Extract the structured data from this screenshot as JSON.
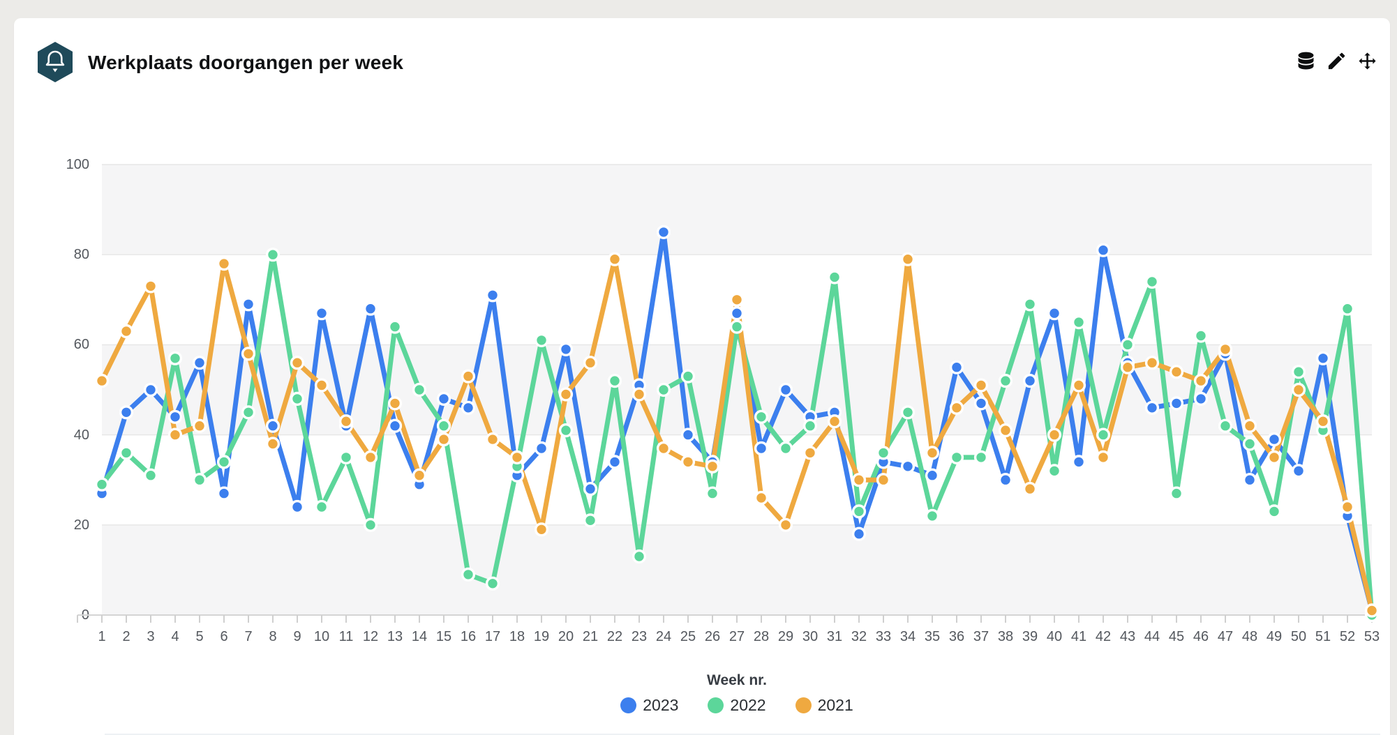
{
  "page": {
    "background": "#ECEBE8",
    "card_background": "#ffffff"
  },
  "header": {
    "title": "Werkplaats doorgangen per week",
    "badge": {
      "shape": "hexagon",
      "color": "#1F4A5A",
      "icon": "bell-icon"
    },
    "actions": [
      {
        "name": "data",
        "icon": "database-icon"
      },
      {
        "name": "edit",
        "icon": "pencil-icon"
      },
      {
        "name": "move",
        "icon": "move-icon"
      }
    ]
  },
  "chart_data": {
    "type": "line",
    "title": "Werkplaats doorgangen per week",
    "xlabel": "Week nr.",
    "ylabel": "",
    "ylim": [
      0,
      100
    ],
    "y_ticks": [
      0,
      20,
      40,
      60,
      80,
      100
    ],
    "grid": true,
    "legend_position": "bottom",
    "band_colors": [
      "#f5f5f6",
      "#ffffff"
    ],
    "gridline_color": "#e6e6e6",
    "axis_line_color": "#d4d4d4",
    "tick_color": "#cfcfcf",
    "categories": [
      1,
      2,
      3,
      4,
      5,
      6,
      7,
      8,
      9,
      10,
      11,
      12,
      13,
      14,
      15,
      16,
      17,
      18,
      19,
      20,
      21,
      22,
      23,
      24,
      25,
      26,
      27,
      28,
      29,
      30,
      31,
      32,
      33,
      34,
      35,
      36,
      37,
      38,
      39,
      40,
      41,
      42,
      43,
      44,
      45,
      46,
      47,
      48,
      49,
      50,
      51,
      52,
      53
    ],
    "series": [
      {
        "name": "2023",
        "color": "#3C7FEE",
        "values": [
          27,
          45,
          50,
          44,
          56,
          27,
          69,
          42,
          24,
          67,
          42,
          68,
          42,
          29,
          48,
          46,
          71,
          31,
          37,
          59,
          28,
          34,
          51,
          85,
          40,
          34,
          67,
          37,
          50,
          44,
          45,
          18,
          34,
          33,
          31,
          55,
          47,
          30,
          52,
          67,
          34,
          81,
          56,
          46,
          47,
          48,
          58,
          30,
          39,
          32,
          57,
          22,
          1
        ]
      },
      {
        "name": "2022",
        "color": "#5CD69A",
        "values": [
          29,
          36,
          31,
          57,
          30,
          34,
          45,
          80,
          48,
          24,
          35,
          20,
          64,
          50,
          42,
          9,
          7,
          33,
          61,
          41,
          21,
          52,
          13,
          50,
          53,
          27,
          64,
          44,
          37,
          42,
          75,
          23,
          36,
          45,
          22,
          35,
          35,
          52,
          69,
          32,
          65,
          40,
          60,
          74,
          27,
          62,
          42,
          38,
          23,
          54,
          41,
          68,
          0
        ]
      },
      {
        "name": "2021",
        "color": "#EFA940",
        "values": [
          52,
          63,
          73,
          40,
          42,
          78,
          58,
          38,
          56,
          51,
          43,
          35,
          47,
          31,
          39,
          53,
          39,
          35,
          19,
          49,
          56,
          79,
          49,
          37,
          34,
          33,
          70,
          26,
          20,
          36,
          43,
          30,
          30,
          79,
          36,
          46,
          51,
          41,
          28,
          40,
          51,
          35,
          55,
          56,
          54,
          52,
          59,
          42,
          35,
          50,
          43,
          24,
          1
        ]
      }
    ]
  }
}
